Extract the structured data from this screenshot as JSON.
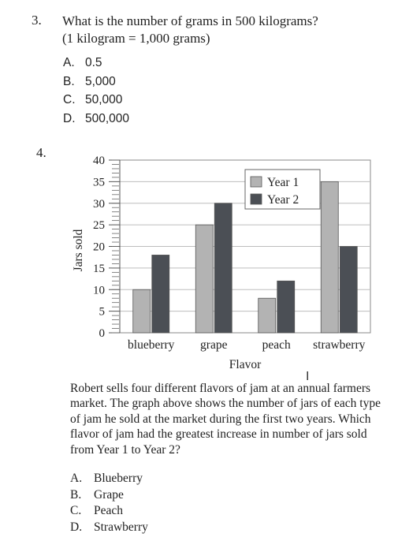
{
  "q3": {
    "number": "3.",
    "question_line1": "What is the number of grams in 500 kilograms?",
    "question_line2": "(1 kilogram = 1,000 grams)",
    "choices": [
      {
        "letter": "A.",
        "text": "0.5"
      },
      {
        "letter": "B.",
        "text": "5,000"
      },
      {
        "letter": "C.",
        "text": "50,000"
      },
      {
        "letter": "D.",
        "text": "500,000"
      }
    ]
  },
  "q4": {
    "number": "4.",
    "paragraph": "Robert sells four different flavors of jam at an annual farmers market. The graph above shows the number of jars of each type of jam he sold at the market during the first two years. Which flavor of jam had the greatest increase in number of jars sold from Year 1 to Year 2?",
    "choices": [
      {
        "letter": "A.",
        "text": "Blueberry"
      },
      {
        "letter": "B.",
        "text": "Grape"
      },
      {
        "letter": "C.",
        "text": "Peach"
      },
      {
        "letter": "D.",
        "text": "Strawberry"
      }
    ]
  },
  "cursor_icon": "text-cursor-ibeam",
  "chart_data": {
    "type": "bar",
    "categories": [
      "blueberry",
      "grape",
      "peach",
      "strawberry"
    ],
    "series": [
      {
        "name": "Year 1",
        "values": [
          10,
          25,
          8,
          35
        ],
        "color": "#b3b3b3"
      },
      {
        "name": "Year 2",
        "values": [
          18,
          30,
          12,
          20
        ],
        "color": "#4b4f55"
      }
    ],
    "xlabel": "Flavor",
    "ylabel": "Jars sold",
    "ylim": [
      0,
      40
    ],
    "yticks": [
      0,
      5,
      10,
      15,
      20,
      25,
      30,
      35,
      40
    ],
    "minor_tick_step": 1,
    "grid": true,
    "legend_position": "top-right"
  }
}
